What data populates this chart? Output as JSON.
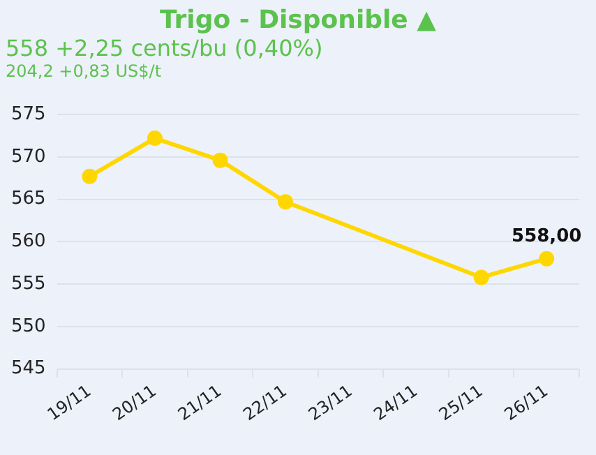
{
  "chart_data": {
    "type": "line",
    "title": "Trigo - Disponible ▲",
    "subtitle": "558 +2,25 cents/bu (0,40%)",
    "annotations": [
      "204,2 +0,83 US$/t"
    ],
    "categories": [
      "19/11",
      "20/11",
      "21/11",
      "22/11",
      "23/11",
      "24/11",
      "25/11",
      "26/11"
    ],
    "series": [
      {
        "color": "#ffd700",
        "values": [
          567.7,
          572.2,
          569.6,
          564.7,
          null,
          null,
          555.8,
          558.0
        ],
        "value_labels": [
          null,
          null,
          null,
          null,
          null,
          null,
          null,
          "558,00"
        ]
      }
    ],
    "ylim": [
      545,
      575
    ],
    "yticks": [
      545,
      550,
      555,
      560,
      565,
      570,
      575
    ],
    "grid": "y",
    "legend": false,
    "marker": "circle",
    "line_style": "solid"
  }
}
